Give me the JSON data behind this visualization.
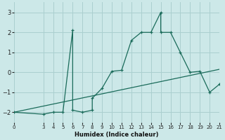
{
  "xlabel": "Humidex (Indice chaleur)",
  "background_color": "#cce8e8",
  "grid_color": "#aacfcf",
  "line_color": "#1a6b5a",
  "xlim": [
    0,
    21
  ],
  "ylim": [
    -2.5,
    3.5
  ],
  "yticks": [
    -2,
    -1,
    0,
    1,
    2,
    3
  ],
  "xticks": [
    0,
    3,
    4,
    5,
    6,
    7,
    8,
    9,
    10,
    11,
    12,
    13,
    14,
    15,
    16,
    17,
    18,
    19,
    20,
    21
  ],
  "line1_x": [
    0,
    3,
    4,
    5,
    6,
    6,
    7,
    8,
    8,
    9,
    10,
    11,
    12,
    13,
    14,
    15,
    15,
    16,
    17,
    18,
    19,
    20,
    21
  ],
  "line1_y": [
    -2.0,
    -2.1,
    -2.0,
    -2.0,
    2.1,
    -1.9,
    -2.0,
    -1.9,
    -1.3,
    -0.8,
    0.05,
    0.1,
    1.6,
    2.0,
    2.0,
    3.0,
    2.0,
    2.0,
    1.0,
    0.0,
    0.05,
    -1.0,
    -0.6
  ],
  "line2_x": [
    0,
    21
  ],
  "line2_y": [
    -2.0,
    0.15
  ]
}
